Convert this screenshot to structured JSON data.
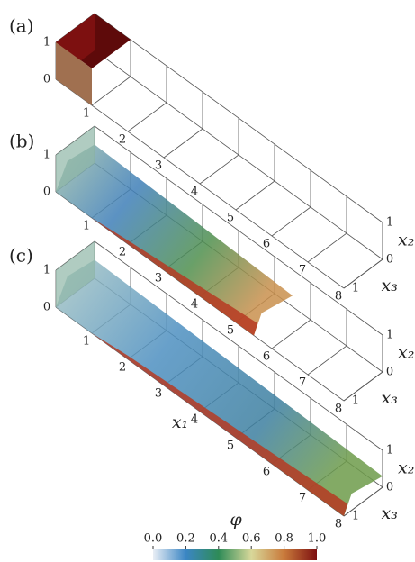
{
  "figure": {
    "panels": [
      {
        "label": "(a)",
        "x1_ticks": [
          1,
          2,
          3,
          4,
          5,
          6,
          7,
          8
        ],
        "x2_ticks": [
          0,
          1
        ],
        "x2_right_ticks": [
          0,
          1
        ],
        "x3_ticks": [
          1
        ],
        "x2_label": "x₂",
        "x3_label": "x₃"
      },
      {
        "label": "(b)",
        "x1_ticks": [
          1,
          2,
          3,
          4,
          5,
          6,
          7,
          8
        ],
        "x2_ticks": [
          0,
          1
        ],
        "x2_right_ticks": [
          0,
          1
        ],
        "x3_ticks": [
          1
        ],
        "x2_label": "x₂",
        "x3_label": "x₃"
      },
      {
        "label": "(c)",
        "x1_ticks": [
          1,
          2,
          3,
          4,
          5,
          6,
          7,
          8
        ],
        "x2_ticks": [
          0,
          1
        ],
        "x2_right_ticks": [
          0,
          1
        ],
        "x3_ticks": [
          1
        ],
        "x2_label": "x₂",
        "x3_label": "x₃"
      }
    ],
    "x1_label": "x₁",
    "colorbar": {
      "label": "φ",
      "lim": [
        0,
        1
      ],
      "ticks": [
        {
          "value": 0,
          "label": "0.0"
        },
        {
          "value": 0.2,
          "label": "0.2"
        },
        {
          "value": 0.4,
          "label": "0.4"
        },
        {
          "value": 0.6,
          "label": "0.6"
        },
        {
          "value": 0.8,
          "label": "0.8"
        },
        {
          "value": 1,
          "label": "1.0"
        }
      ]
    }
  }
}
